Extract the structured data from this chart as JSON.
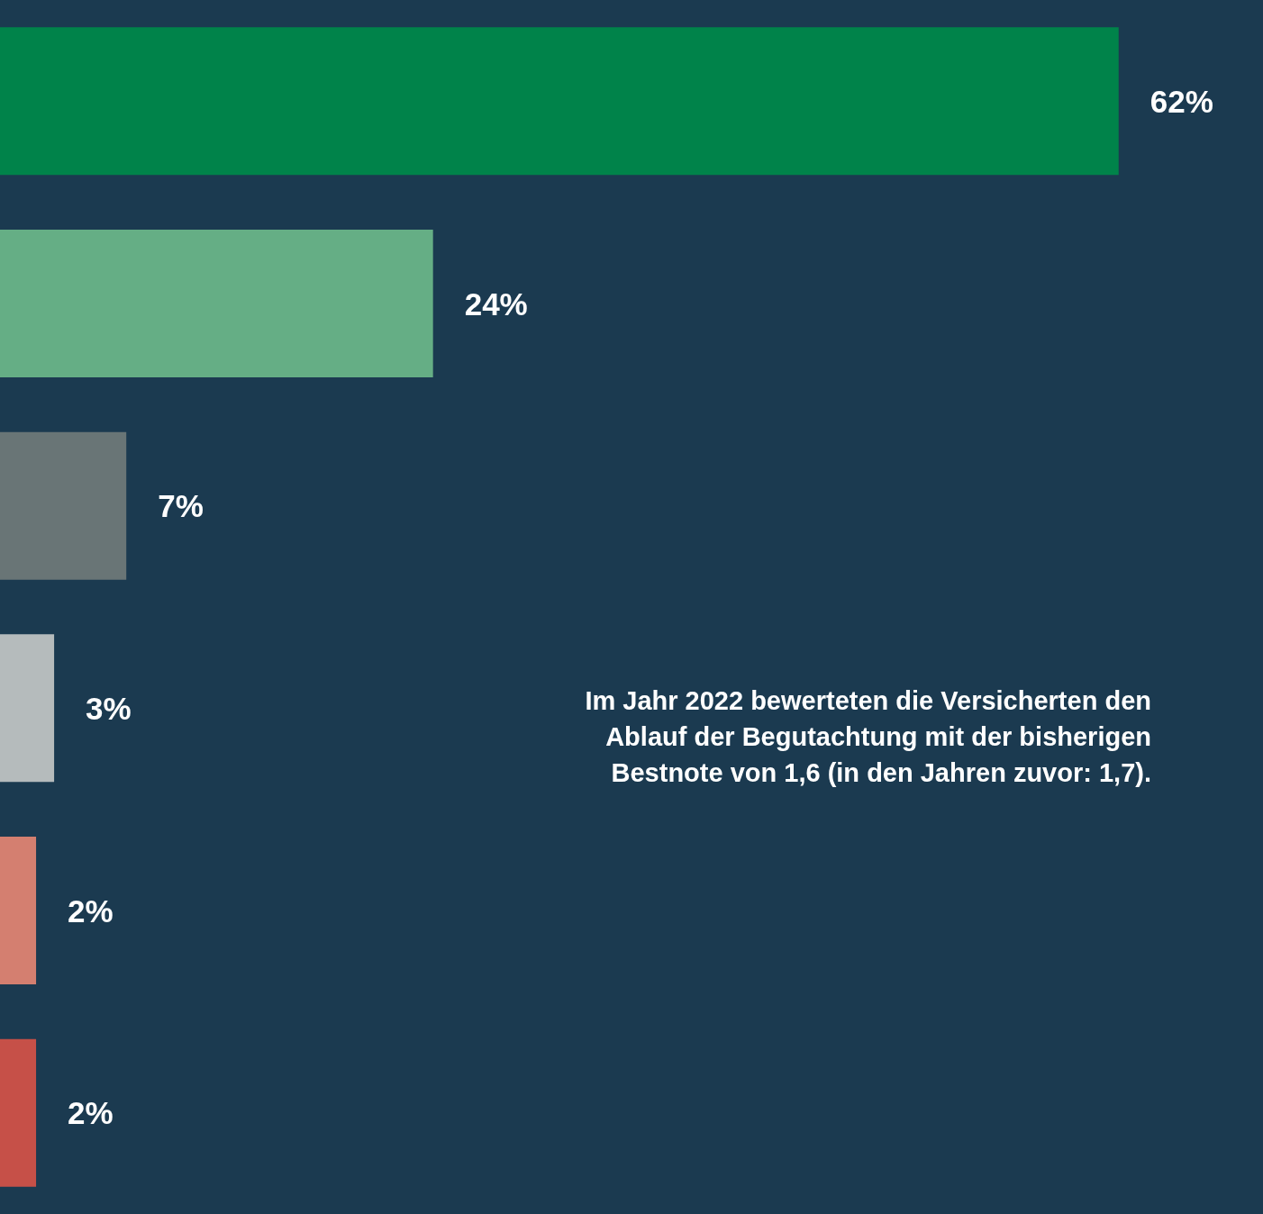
{
  "chart_data": {
    "type": "bar",
    "orientation": "horizontal",
    "categories": [
      null,
      null,
      null,
      null,
      null,
      null
    ],
    "values": [
      62,
      24,
      7,
      3,
      2,
      2
    ],
    "colors": [
      "#00834a",
      "#65ae85",
      "#697576",
      "#b5bbbc",
      "#d47f70",
      "#c65048"
    ],
    "tick_labels": false,
    "data_labels": true,
    "value_labels": [
      "62%",
      "24%",
      "7%",
      "3%",
      "2%",
      "2%"
    ],
    "annotations": [
      "Im Jahr 2022 bewerteten die Versicherten den Ablauf der Begutachtung mit der bisherigen Bestnote von 1,6 (in den Jahren zuvor: 1,7)."
    ]
  }
}
